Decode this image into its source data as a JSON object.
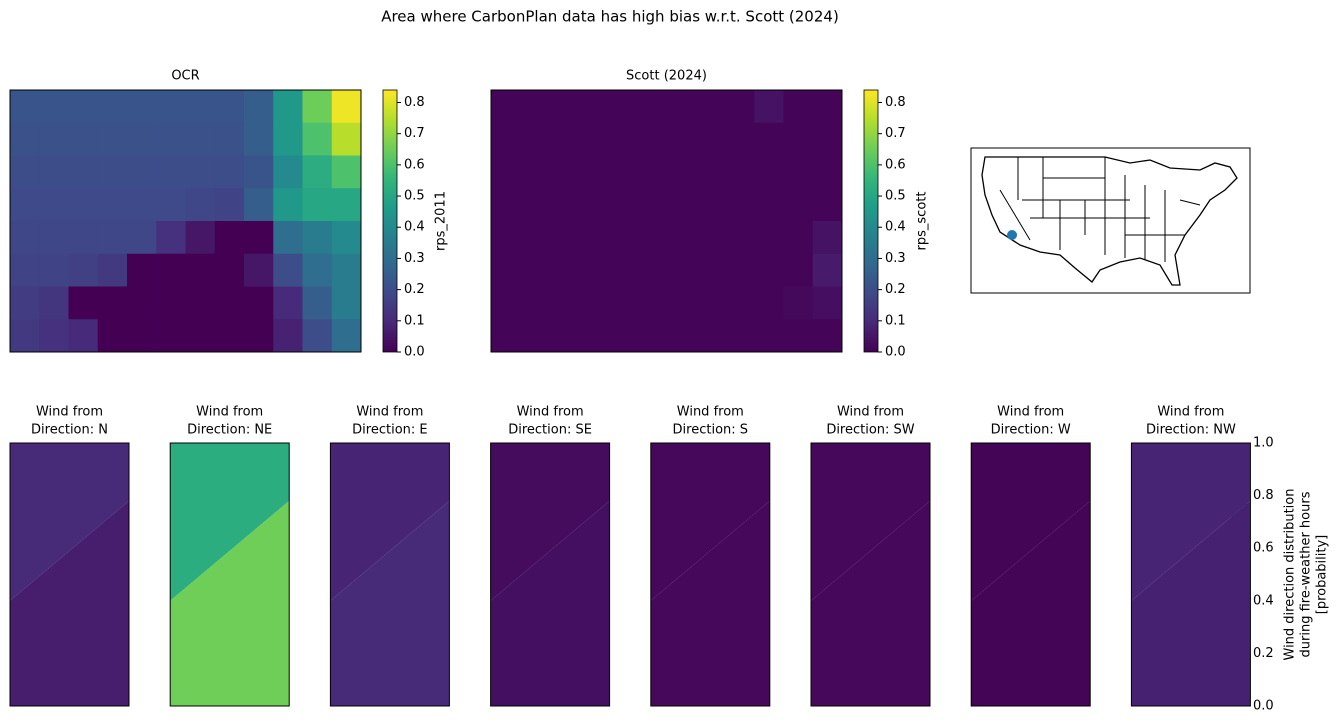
{
  "chart_data": [
    {
      "type": "heatmap",
      "title": "Area where CarbonPlan data has high bias w.r.t. Scott (2024)"
    },
    {
      "type": "heatmap",
      "title": "OCR",
      "colormap": "viridis",
      "colorbar_label": "rps_2011",
      "ylim": [
        0,
        0.84
      ],
      "yticks": [
        {
          "value": 0,
          "label": "0.0"
        },
        0.1,
        0.2,
        0.3,
        0.4,
        0.5,
        0.6,
        0.7,
        0.8
      ],
      "values": [
        [
          0.22,
          0.22,
          0.22,
          0.22,
          0.22,
          0.22,
          0.22,
          0.22,
          0.25,
          0.45,
          0.65,
          0.82
        ],
        [
          0.21,
          0.21,
          0.21,
          0.21,
          0.21,
          0.21,
          0.21,
          0.21,
          0.25,
          0.45,
          0.6,
          0.75
        ],
        [
          0.2,
          0.2,
          0.2,
          0.2,
          0.2,
          0.2,
          0.2,
          0.2,
          0.22,
          0.4,
          0.52,
          0.6
        ],
        [
          0.19,
          0.19,
          0.19,
          0.19,
          0.19,
          0.19,
          0.18,
          0.17,
          0.25,
          0.45,
          0.5,
          0.5
        ],
        [
          0.18,
          0.18,
          0.18,
          0.18,
          0.18,
          0.12,
          0.05,
          0,
          0,
          0.3,
          0.35,
          0.4
        ],
        [
          0.17,
          0.17,
          0.16,
          0.14,
          0,
          0,
          0,
          0,
          0.05,
          0.2,
          0.3,
          0.35
        ],
        [
          0.15,
          0.13,
          0,
          0,
          0,
          0,
          0,
          0,
          0,
          0.1,
          0.25,
          0.35
        ],
        [
          0.14,
          0.12,
          0.1,
          0,
          0,
          0,
          0,
          0,
          0,
          0.08,
          0.2,
          0.3
        ]
      ]
    },
    {
      "type": "heatmap",
      "title": "Scott (2024)",
      "colormap": "viridis",
      "colorbar_label": "rps_scott",
      "ylim": [
        0,
        0.84
      ],
      "yticks": [
        {
          "value": 0,
          "label": "0.0"
        },
        0.1,
        0.2,
        0.3,
        0.4,
        0.5,
        0.6,
        0.7,
        0.8
      ],
      "values": [
        [
          0.01,
          0.01,
          0.01,
          0.01,
          0.01,
          0.01,
          0.01,
          0.01,
          0.01,
          0.04,
          0.01,
          0.01
        ],
        [
          0.01,
          0.01,
          0.01,
          0.01,
          0.01,
          0.01,
          0.01,
          0.01,
          0.01,
          0.01,
          0.01,
          0.01
        ],
        [
          0.01,
          0.01,
          0.01,
          0.01,
          0.01,
          0.01,
          0.01,
          0.01,
          0.01,
          0.01,
          0.01,
          0.01
        ],
        [
          0.01,
          0.01,
          0.01,
          0.01,
          0.01,
          0.01,
          0.01,
          0.01,
          0.01,
          0.01,
          0.01,
          0.01
        ],
        [
          0.01,
          0.01,
          0.01,
          0.01,
          0.01,
          0.01,
          0.01,
          0.01,
          0.01,
          0.01,
          0.01,
          0.04
        ],
        [
          0.01,
          0.01,
          0.01,
          0.01,
          0.01,
          0.01,
          0.01,
          0.01,
          0.01,
          0.01,
          0.01,
          0.06
        ],
        [
          0.01,
          0.01,
          0.01,
          0.01,
          0.01,
          0.01,
          0.01,
          0.01,
          0.01,
          0.01,
          0.02,
          0.03
        ],
        [
          0.01,
          0.01,
          0.01,
          0.01,
          0.01,
          0.01,
          0.01,
          0.01,
          0.01,
          0.01,
          0.01,
          0.01
        ]
      ]
    },
    {
      "type": "map"
    },
    {
      "type": "wind",
      "colormap": "viridis",
      "colorbar_label": [
        "Wind direction distribution",
        "during fire-weather hours",
        "[probability]"
      ],
      "ylim": [
        0,
        1
      ],
      "yticks": [
        {
          "value": 0,
          "label": "0.0"
        },
        0.2,
        0.4,
        0.6,
        0.8,
        {
          "value": 1,
          "label": "1.0"
        }
      ],
      "panels": [
        {
          "title": [
            "Wind from",
            "Direction: N"
          ],
          "values": [
            0.12,
            0.08
          ]
        },
        {
          "title": [
            "Wind from",
            "Direction: NE"
          ],
          "values": [
            0.62,
            0.78
          ]
        },
        {
          "title": [
            "Wind from",
            "Direction: E"
          ],
          "values": [
            0.1,
            0.12
          ]
        },
        {
          "title": [
            "Wind from",
            "Direction: SE"
          ],
          "values": [
            0.03,
            0.04
          ]
        },
        {
          "title": [
            "Wind from",
            "Direction: S"
          ],
          "values": [
            0.02,
            0.02
          ]
        },
        {
          "title": [
            "Wind from",
            "Direction: SW"
          ],
          "values": [
            0.02,
            0.02
          ]
        },
        {
          "title": [
            "Wind from",
            "Direction: W"
          ],
          "values": [
            0.01,
            0.01
          ]
        },
        {
          "title": [
            "Wind from",
            "Direction: NW"
          ],
          "values": [
            0.1,
            0.09
          ]
        }
      ]
    }
  ]
}
